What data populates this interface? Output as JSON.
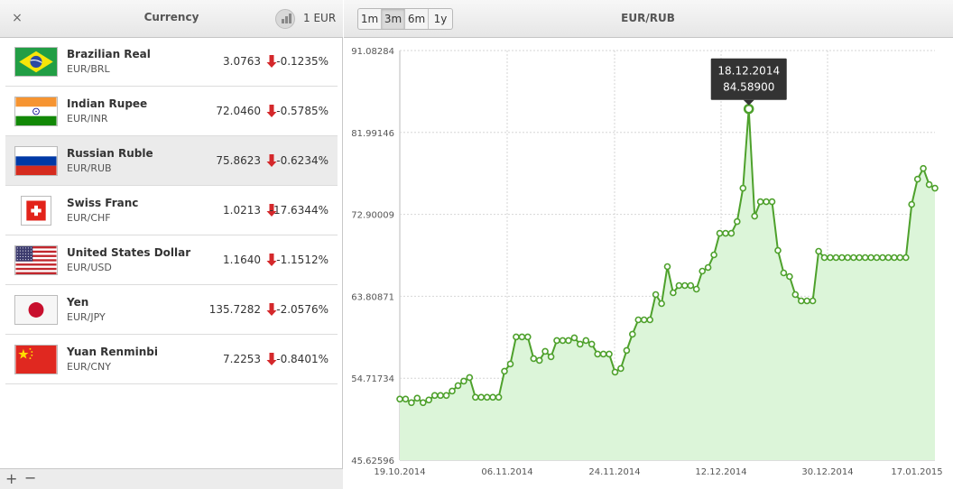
{
  "left_panel": {
    "title": "Currency",
    "close_label": "×",
    "base_amount": "1 EUR",
    "add_label": "+",
    "remove_label": "−",
    "currencies": [
      {
        "name": "Brazilian Real",
        "code": "EUR/BRL",
        "rate": "3.0763",
        "change": "-0.1235%",
        "flag": "brazil-flag-icon",
        "selected": false
      },
      {
        "name": "Indian Rupee",
        "code": "EUR/INR",
        "rate": "72.0460",
        "change": "-0.5785%",
        "flag": "india-flag-icon",
        "selected": false
      },
      {
        "name": "Russian Ruble",
        "code": "EUR/RUB",
        "rate": "75.8623",
        "change": "-0.6234%",
        "flag": "russia-flag-icon",
        "selected": true
      },
      {
        "name": "Swiss Franc",
        "code": "EUR/CHF",
        "rate": "1.0213",
        "change": "-17.6344%",
        "flag": "switzerland-flag-icon",
        "selected": false
      },
      {
        "name": "United States Dollar",
        "code": "EUR/USD",
        "rate": "1.1640",
        "change": "-1.1512%",
        "flag": "usa-flag-icon",
        "selected": false
      },
      {
        "name": "Yen",
        "code": "EUR/JPY",
        "rate": "135.7282",
        "change": "-2.0576%",
        "flag": "japan-flag-icon",
        "selected": false
      },
      {
        "name": "Yuan Renminbi",
        "code": "EUR/CNY",
        "rate": "7.2253",
        "change": "-0.8401%",
        "flag": "china-flag-icon",
        "selected": false
      }
    ]
  },
  "right_panel": {
    "title": "EUR/RUB",
    "ranges": [
      {
        "label": "1m",
        "active": false
      },
      {
        "label": "3m",
        "active": true
      },
      {
        "label": "6m",
        "active": false
      },
      {
        "label": "1y",
        "active": false
      }
    ]
  },
  "colors": {
    "line": "#4ea12c",
    "fill": "#dcf5d9",
    "down_arrow": "#d4282b",
    "tooltip_bg": "#333333"
  },
  "chart_data": {
    "type": "area",
    "title": "",
    "xlabel": "",
    "ylabel": "",
    "ylim": [
      45.62596,
      91.08284
    ],
    "y_ticks": [
      "91.08284",
      "81.99146",
      "72.90009",
      "63.80871",
      "54.71734",
      "45.62596"
    ],
    "x_ticks": [
      "19.10.2014",
      "06.11.2014",
      "24.11.2014",
      "12.12.2014",
      "30.12.2014",
      "17.01.2015"
    ],
    "grid": true,
    "tooltip": {
      "date": "18.12.2014",
      "value": "84.58900"
    },
    "series": [
      {
        "values": [
          52.4,
          52.4,
          52.0,
          52.5,
          52.0,
          52.3,
          52.8,
          52.8,
          52.8,
          53.3,
          53.9,
          54.4,
          54.8,
          52.6,
          52.6,
          52.6,
          52.6,
          52.6,
          55.5,
          56.3,
          59.3,
          59.3,
          59.3,
          56.9,
          56.7,
          57.7,
          57.1,
          58.9,
          58.9,
          58.9,
          59.2,
          58.5,
          58.9,
          58.5,
          57.4,
          57.4,
          57.4,
          55.4,
          55.8,
          57.8,
          59.6,
          61.2,
          61.2,
          61.2,
          64.0,
          63.0,
          67.1,
          64.2,
          65.0,
          65.0,
          65.0,
          64.6,
          66.6,
          67.0,
          68.4,
          70.8,
          70.8,
          70.8,
          72.1,
          75.8,
          84.6,
          72.7,
          74.3,
          74.3,
          74.3,
          68.9,
          66.4,
          66.0,
          64.0,
          63.3,
          63.3,
          63.3,
          68.8,
          68.1,
          68.1,
          68.1,
          68.1,
          68.1,
          68.1,
          68.1,
          68.1,
          68.1,
          68.1,
          68.1,
          68.1,
          68.1,
          68.1,
          68.1,
          74.0,
          76.8,
          78.0,
          76.2,
          75.8
        ]
      }
    ]
  }
}
